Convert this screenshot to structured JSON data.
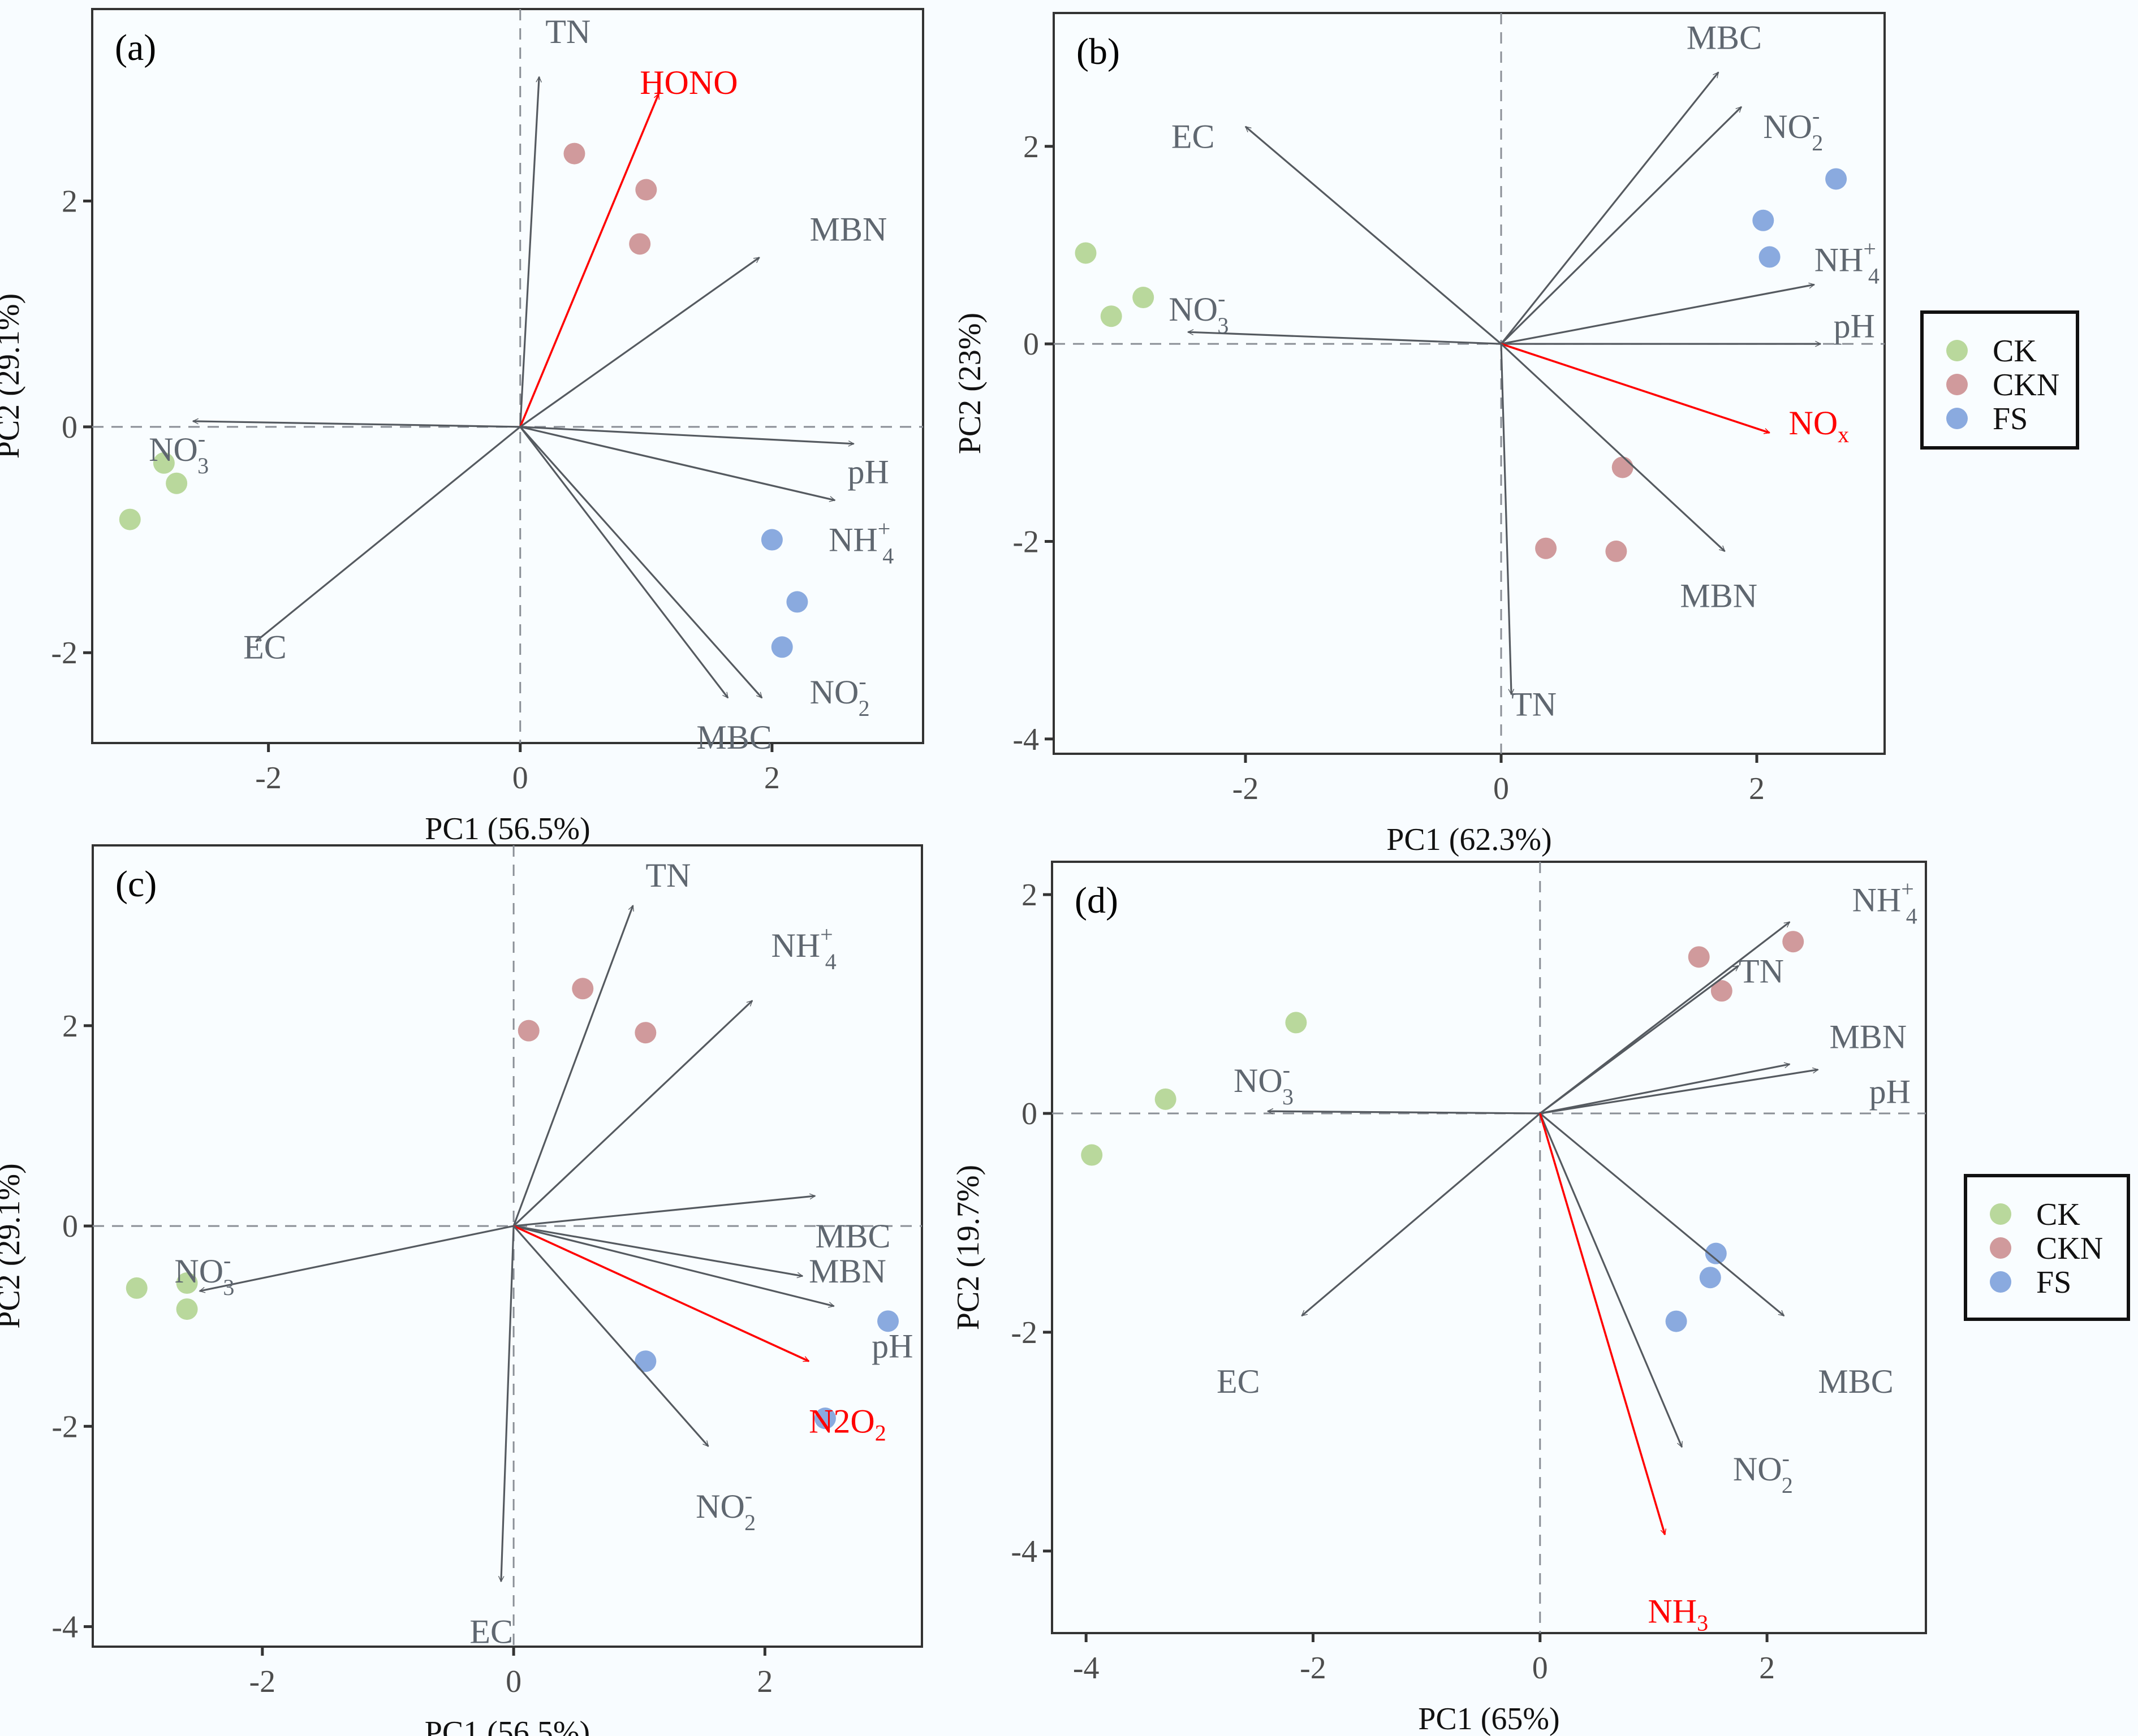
{
  "groups": [
    {
      "name": "CK",
      "color": "#b9d89c"
    },
    {
      "name": "CKN",
      "color": "#d09a9c"
    },
    {
      "name": "FS",
      "color": "#8aaadf"
    }
  ],
  "highlight_color": "#ff0000",
  "chart_data": [
    {
      "type": "scatter",
      "subtype": "pca-biplot",
      "panel_label": "(a)",
      "xlabel": "PC1 (56.5%)",
      "ylabel": "PC2 (29.1%)",
      "xlim": [
        -3.4,
        3.2
      ],
      "ylim": [
        -2.8,
        3.7
      ],
      "xticks": [
        -2,
        0,
        2
      ],
      "yticks": [
        -2,
        0,
        2
      ],
      "legend": null,
      "vectors": [
        {
          "label": "TN",
          "x": 0.15,
          "y": 3.1,
          "lx": 0.2,
          "ly": 3.5,
          "highlight": false
        },
        {
          "label": "HONO",
          "x": 1.1,
          "y": 2.95,
          "lx": 0.95,
          "ly": 3.05,
          "highlight": true
        },
        {
          "label": "MBN",
          "x": 1.9,
          "y": 1.5,
          "lx": 2.3,
          "ly": 1.75,
          "highlight": false
        },
        {
          "label": "NO3",
          "sub": "3",
          "sup": "-",
          "x": -2.6,
          "y": 0.05,
          "lx": -2.95,
          "ly": -0.2,
          "highlight": false
        },
        {
          "label": "pH",
          "x": 2.65,
          "y": -0.15,
          "lx": 2.6,
          "ly": -0.4,
          "highlight": false
        },
        {
          "label": "NH4",
          "sub": "4",
          "sup": "+",
          "x": 2.5,
          "y": -0.65,
          "lx": 2.45,
          "ly": -1.0,
          "highlight": false
        },
        {
          "label": "EC",
          "x": -2.1,
          "y": -1.9,
          "lx": -2.2,
          "ly": -1.95,
          "highlight": false
        },
        {
          "label": "MBC",
          "x": 1.65,
          "y": -2.4,
          "lx": 1.4,
          "ly": -2.75,
          "highlight": false
        },
        {
          "label": "NO2",
          "sub": "2",
          "sup": "-",
          "x": 1.92,
          "y": -2.4,
          "lx": 2.3,
          "ly": -2.35,
          "highlight": false
        }
      ],
      "points": [
        {
          "group": "CK",
          "x": -2.83,
          "y": -0.32
        },
        {
          "group": "CK",
          "x": -2.73,
          "y": -0.5
        },
        {
          "group": "CK",
          "x": -3.1,
          "y": -0.82
        },
        {
          "group": "CKN",
          "x": 0.43,
          "y": 2.42
        },
        {
          "group": "CKN",
          "x": 1.0,
          "y": 2.1
        },
        {
          "group": "CKN",
          "x": 0.95,
          "y": 1.62
        },
        {
          "group": "FS",
          "x": 2.0,
          "y": -1.0
        },
        {
          "group": "FS",
          "x": 2.2,
          "y": -1.55
        },
        {
          "group": "FS",
          "x": 2.08,
          "y": -1.95
        }
      ]
    },
    {
      "type": "scatter",
      "subtype": "pca-biplot",
      "panel_label": "(b)",
      "xlabel": "PC1 (62.3%)",
      "ylabel": "PC2 (23%)",
      "xlim": [
        -3.5,
        3.0
      ],
      "ylim": [
        -4.15,
        3.35
      ],
      "xticks": [
        -2,
        0,
        2
      ],
      "yticks": [
        -4,
        -2,
        0,
        2
      ],
      "legend": "right",
      "vectors": [
        {
          "label": "MBC",
          "x": 1.7,
          "y": 2.75,
          "lx": 1.45,
          "ly": 3.1,
          "highlight": false
        },
        {
          "label": "NO2",
          "sub": "2",
          "sup": "-",
          "x": 1.88,
          "y": 2.4,
          "lx": 2.05,
          "ly": 2.2,
          "highlight": false
        },
        {
          "label": "EC",
          "x": -2.0,
          "y": 2.2,
          "lx": -2.58,
          "ly": 2.1,
          "highlight": false
        },
        {
          "label": "NH4",
          "sub": "4",
          "sup": "+",
          "x": 2.45,
          "y": 0.6,
          "lx": 2.45,
          "ly": 0.85,
          "highlight": false
        },
        {
          "label": "pH",
          "x": 2.5,
          "y": 0.0,
          "lx": 2.6,
          "ly": 0.18,
          "highlight": false
        },
        {
          "label": "NO3",
          "sub": "3",
          "sup": "-",
          "x": -2.45,
          "y": 0.12,
          "lx": -2.6,
          "ly": 0.35,
          "highlight": false
        },
        {
          "label": "NOx",
          "sub": "x",
          "x": 2.1,
          "y": -0.9,
          "lx": 2.25,
          "ly": -0.8,
          "highlight": true
        },
        {
          "label": "MBN",
          "x": 1.75,
          "y": -2.1,
          "lx": 1.4,
          "ly": -2.55,
          "highlight": false
        },
        {
          "label": "TN",
          "x": 0.08,
          "y": -3.55,
          "lx": 0.08,
          "ly": -3.65,
          "highlight": false
        }
      ],
      "points": [
        {
          "group": "CK",
          "x": -3.25,
          "y": 0.92
        },
        {
          "group": "CK",
          "x": -3.05,
          "y": 0.28
        },
        {
          "group": "CK",
          "x": -2.8,
          "y": 0.47
        },
        {
          "group": "CKN",
          "x": 0.35,
          "y": -2.07
        },
        {
          "group": "CKN",
          "x": 0.9,
          "y": -2.1
        },
        {
          "group": "CKN",
          "x": 0.95,
          "y": -1.25
        },
        {
          "group": "FS",
          "x": 2.62,
          "y": 1.67
        },
        {
          "group": "FS",
          "x": 2.05,
          "y": 1.25
        },
        {
          "group": "FS",
          "x": 2.1,
          "y": 0.88
        }
      ]
    },
    {
      "type": "scatter",
      "subtype": "pca-biplot",
      "panel_label": "(c)",
      "xlabel": "PC1 (56.5%)",
      "ylabel": "PC2 (29.1%)",
      "xlim": [
        -3.35,
        3.25
      ],
      "ylim": [
        -4.2,
        3.8
      ],
      "xticks": [
        -2,
        0,
        2
      ],
      "yticks": [
        -4,
        -2,
        0,
        2
      ],
      "legend": null,
      "vectors": [
        {
          "label": "TN",
          "x": 0.95,
          "y": 3.2,
          "lx": 1.05,
          "ly": 3.5,
          "highlight": false
        },
        {
          "label": "NH4",
          "sub": "4",
          "sup": "+",
          "x": 1.9,
          "y": 2.25,
          "lx": 2.05,
          "ly": 2.8,
          "highlight": false
        },
        {
          "label": "MBC",
          "x": 2.4,
          "y": 0.3,
          "lx": 2.4,
          "ly": -0.1,
          "highlight": false
        },
        {
          "label": "MBN",
          "x": 2.3,
          "y": -0.5,
          "lx": 2.35,
          "ly": -0.45,
          "highlight": false
        },
        {
          "label": "pH",
          "x": 2.55,
          "y": -0.8,
          "lx": 2.85,
          "ly": -1.2,
          "highlight": false
        },
        {
          "label": "N2O",
          "sub": "2",
          "x": 2.35,
          "y": -1.35,
          "lx": 2.35,
          "ly": -1.95,
          "highlight": true
        },
        {
          "label": "NO2",
          "sub": "2",
          "sup": "-",
          "x": 1.55,
          "y": -2.2,
          "lx": 1.45,
          "ly": -2.8,
          "highlight": false
        },
        {
          "label": "NO3",
          "sub": "3",
          "sup": "-",
          "x": -2.5,
          "y": -0.65,
          "lx": -2.7,
          "ly": -0.45,
          "highlight": false
        },
        {
          "label": "EC",
          "x": -0.1,
          "y": -3.55,
          "lx": -0.35,
          "ly": -4.05,
          "highlight": false
        }
      ],
      "points": [
        {
          "group": "CK",
          "x": -3.0,
          "y": -0.62
        },
        {
          "group": "CK",
          "x": -2.6,
          "y": -0.57
        },
        {
          "group": "CK",
          "x": -2.6,
          "y": -0.83
        },
        {
          "group": "CKN",
          "x": 0.12,
          "y": 1.95
        },
        {
          "group": "CKN",
          "x": 0.55,
          "y": 2.37
        },
        {
          "group": "CKN",
          "x": 1.05,
          "y": 1.93
        },
        {
          "group": "FS",
          "x": 1.05,
          "y": -1.35
        },
        {
          "group": "FS",
          "x": 2.48,
          "y": -1.92
        },
        {
          "group": "FS",
          "x": 2.98,
          "y": -0.95
        }
      ]
    },
    {
      "type": "scatter",
      "subtype": "pca-biplot",
      "panel_label": "(d)",
      "xlabel": "PC1 (65%)",
      "ylabel": "PC2 (19.7%)",
      "xlim": [
        -4.3,
        3.4
      ],
      "ylim": [
        -4.75,
        2.3
      ],
      "xticks": [
        -4,
        -2,
        0,
        2
      ],
      "yticks": [
        -4,
        -2,
        0,
        2
      ],
      "legend": "right",
      "vectors": [
        {
          "label": "NH4",
          "sub": "4",
          "sup": "+",
          "x": 2.2,
          "y": 1.75,
          "lx": 2.75,
          "ly": 1.95,
          "highlight": false
        },
        {
          "label": "TN",
          "x": 1.75,
          "y": 1.35,
          "lx": 1.75,
          "ly": 1.3,
          "highlight": false
        },
        {
          "label": "MBN",
          "x": 2.2,
          "y": 0.45,
          "lx": 2.55,
          "ly": 0.7,
          "highlight": false
        },
        {
          "label": "pH",
          "x": 2.45,
          "y": 0.4,
          "lx": 2.9,
          "ly": 0.2,
          "highlight": false
        },
        {
          "label": "NO3",
          "sub": "3",
          "sup": "-",
          "x": -2.4,
          "y": 0.02,
          "lx": -2.7,
          "ly": 0.3,
          "highlight": false
        },
        {
          "label": "EC",
          "x": -2.1,
          "y": -1.85,
          "lx": -2.85,
          "ly": -2.45,
          "highlight": false
        },
        {
          "label": "MBC",
          "x": 2.15,
          "y": -1.85,
          "lx": 2.45,
          "ly": -2.45,
          "highlight": false
        },
        {
          "label": "NO2",
          "sub": "2",
          "sup": "-",
          "x": 1.25,
          "y": -3.05,
          "lx": 1.7,
          "ly": -3.25,
          "highlight": false
        },
        {
          "label": "NH3",
          "sub": "3",
          "x": 1.1,
          "y": -3.85,
          "lx": 0.95,
          "ly": -4.55,
          "highlight": true
        }
      ],
      "points": [
        {
          "group": "CK",
          "x": -2.15,
          "y": 0.83
        },
        {
          "group": "CK",
          "x": -3.3,
          "y": 0.13
        },
        {
          "group": "CK",
          "x": -3.95,
          "y": -0.38
        },
        {
          "group": "CKN",
          "x": 1.4,
          "y": 1.43
        },
        {
          "group": "CKN",
          "x": 1.6,
          "y": 1.12
        },
        {
          "group": "CKN",
          "x": 2.23,
          "y": 1.57
        },
        {
          "group": "FS",
          "x": 1.55,
          "y": -1.28
        },
        {
          "group": "FS",
          "x": 1.5,
          "y": -1.5
        },
        {
          "group": "FS",
          "x": 1.2,
          "y": -1.9
        }
      ]
    }
  ]
}
